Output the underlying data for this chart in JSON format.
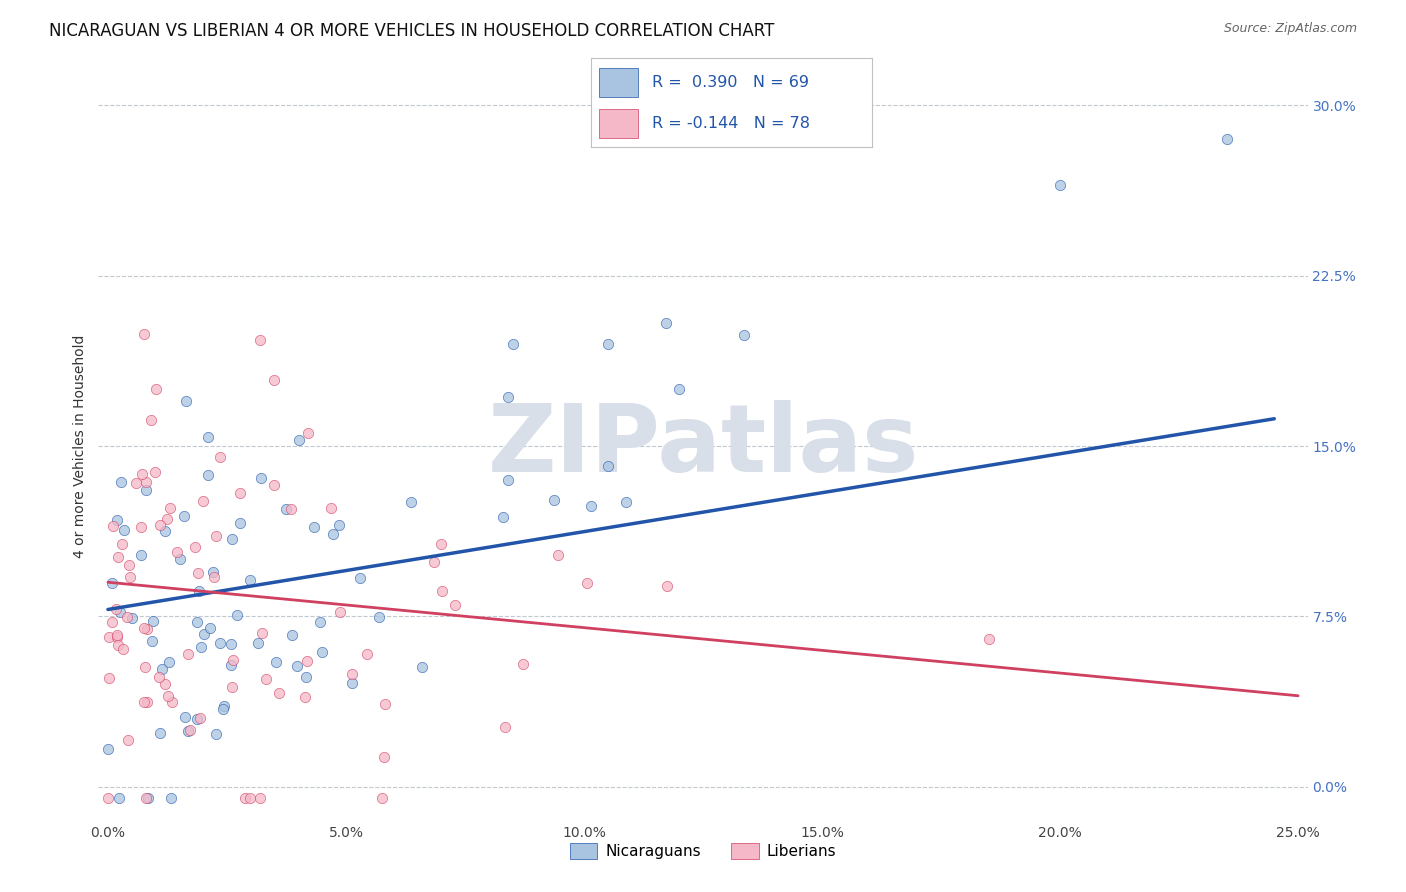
{
  "title": "NICARAGUAN VS LIBERIAN 4 OR MORE VEHICLES IN HOUSEHOLD CORRELATION CHART",
  "source": "Source: ZipAtlas.com",
  "xlabel": "",
  "ylabel": "4 or more Vehicles in Household",
  "xlim": [
    -0.002,
    0.252
  ],
  "ylim": [
    -0.015,
    0.315
  ],
  "xticks": [
    0.0,
    0.05,
    0.1,
    0.15,
    0.2,
    0.25
  ],
  "xticklabels": [
    "0.0%",
    "5.0%",
    "10.0%",
    "15.0%",
    "20.0%",
    "25.0%"
  ],
  "yticks_right": [
    0.0,
    0.075,
    0.15,
    0.225,
    0.3
  ],
  "yticklabels_right": [
    "0.0%",
    "7.5%",
    "15.0%",
    "22.5%",
    "30.0%"
  ],
  "nicaraguan_color": "#a8c4e0",
  "liberian_color": "#f4b8c8",
  "nicaraguan_line_color": "#2255aa",
  "liberian_line_color": "#d04060",
  "R_nicaraguan": 0.39,
  "N_nicaraguan": 69,
  "R_liberian": -0.144,
  "N_liberian": 78,
  "watermark": "ZIPatlas",
  "watermark_color": "#d8dfe8",
  "grid_color": "#c0c8d0",
  "background_color": "#ffffff",
  "legend_labels": [
    "Nicaraguans",
    "Liberians"
  ],
  "title_fontsize": 12,
  "axis_label_fontsize": 10,
  "tick_fontsize": 10,
  "nic_line_x0": 0.0,
  "nic_line_y0": 0.078,
  "nic_line_x1": 0.245,
  "nic_line_y1": 0.162,
  "lib_line_x0": 0.0,
  "lib_line_y0": 0.09,
  "lib_line_x1": 0.25,
  "lib_line_y1": 0.04
}
